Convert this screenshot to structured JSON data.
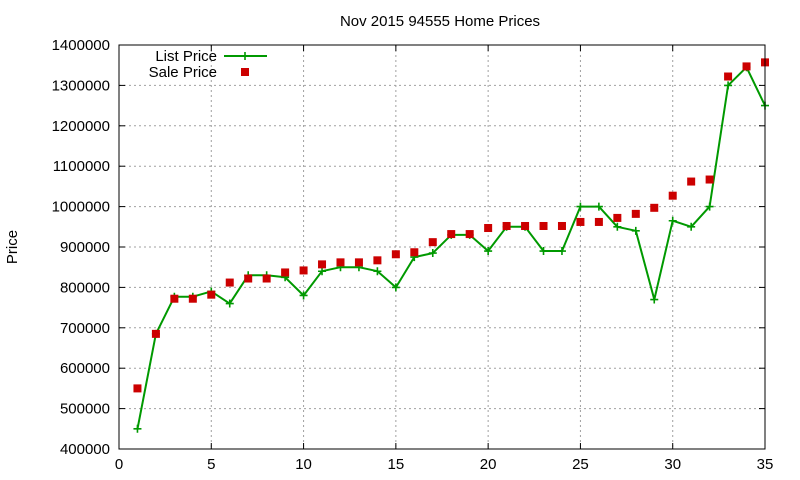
{
  "chart_data": {
    "type": "line",
    "title": "Nov 2015 94555 Home Prices",
    "xlabel": "",
    "ylabel": "Price",
    "xlim": [
      0,
      35
    ],
    "ylim": [
      400000,
      1400000
    ],
    "xticks": [
      0,
      5,
      10,
      15,
      20,
      25,
      30,
      35
    ],
    "yticks": [
      400000,
      500000,
      600000,
      700000,
      800000,
      900000,
      1000000,
      1100000,
      1200000,
      1300000,
      1400000
    ],
    "grid": true,
    "legend_position": "top-left",
    "series": [
      {
        "name": "List Price",
        "style": "line-with-plus-markers",
        "color": "#009900",
        "x": [
          1,
          2,
          3,
          4,
          5,
          6,
          7,
          8,
          9,
          10,
          11,
          12,
          13,
          14,
          15,
          16,
          17,
          18,
          19,
          20,
          21,
          22,
          23,
          24,
          25,
          26,
          27,
          28,
          29,
          30,
          31,
          32,
          33,
          34,
          35
        ],
        "y": [
          450000,
          685000,
          777000,
          777000,
          790000,
          760000,
          830000,
          830000,
          825000,
          780000,
          840000,
          850000,
          850000,
          840000,
          800000,
          875000,
          885000,
          930000,
          930000,
          890000,
          950000,
          950000,
          890000,
          890000,
          1000000,
          1000000,
          950000,
          940000,
          770000,
          965000,
          950000,
          1000000,
          1300000,
          1345000,
          1250000
        ]
      },
      {
        "name": "Sale Price",
        "style": "square-markers",
        "color": "#cc0000",
        "x": [
          1,
          2,
          3,
          4,
          5,
          6,
          7,
          8,
          9,
          10,
          11,
          12,
          13,
          14,
          15,
          16,
          17,
          18,
          19,
          20,
          21,
          22,
          23,
          24,
          25,
          26,
          27,
          28,
          29,
          30,
          31,
          32,
          33,
          34,
          35
        ],
        "y": [
          550000,
          685000,
          772000,
          772000,
          782000,
          812000,
          822000,
          822000,
          837000,
          842000,
          857000,
          862000,
          862000,
          867000,
          882000,
          887000,
          912000,
          932000,
          932000,
          947000,
          952000,
          952000,
          952000,
          952000,
          962000,
          962000,
          972000,
          982000,
          997000,
          1027000,
          1062000,
          1067000,
          1322000,
          1347000,
          1357000
        ]
      }
    ]
  }
}
